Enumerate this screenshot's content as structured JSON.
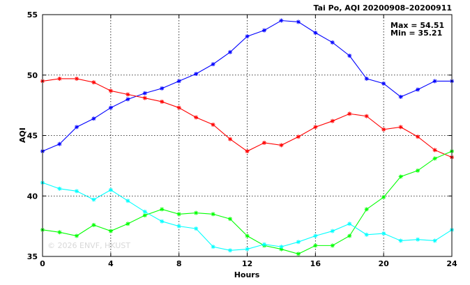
{
  "chart_data": {
    "type": "line",
    "title": "Tai Po, AQI 20200908–20200911",
    "xlabel": "Hours",
    "ylabel": "AQI",
    "xlim": [
      0,
      24
    ],
    "ylim": [
      35,
      55
    ],
    "xticks": [
      0,
      4,
      8,
      12,
      16,
      20,
      24
    ],
    "yticks": [
      35,
      40,
      45,
      50,
      55
    ],
    "grid": true,
    "annotations": {
      "max": "Max = 54.51",
      "min": "Min = 35.21"
    },
    "watermark": "© 2026  ENVF, HKUST",
    "x": [
      0,
      1,
      2,
      3,
      4,
      5,
      6,
      7,
      8,
      9,
      10,
      11,
      12,
      13,
      14,
      15,
      16,
      17,
      18,
      19,
      20,
      21,
      22,
      23,
      24
    ],
    "series": [
      {
        "color": "#0000ff",
        "values": [
          43.7,
          44.3,
          45.7,
          46.4,
          47.3,
          48.0,
          48.5,
          48.9,
          49.5,
          50.1,
          50.9,
          51.9,
          53.2,
          53.7,
          54.51,
          54.4,
          53.5,
          52.7,
          51.6,
          49.7,
          49.3,
          48.2,
          48.8,
          49.5,
          49.5
        ]
      },
      {
        "color": "#ff0000",
        "values": [
          49.5,
          49.7,
          49.7,
          49.4,
          48.7,
          48.4,
          48.1,
          47.8,
          47.3,
          46.5,
          45.9,
          44.7,
          43.7,
          44.4,
          44.2,
          44.9,
          45.7,
          46.2,
          46.8,
          46.6,
          45.5,
          45.7,
          44.9,
          43.8,
          43.2
        ]
      },
      {
        "color": "#00ff00",
        "values": [
          37.2,
          37.0,
          36.7,
          37.6,
          37.1,
          37.7,
          38.4,
          38.9,
          38.5,
          38.6,
          38.5,
          38.1,
          36.7,
          35.9,
          35.6,
          35.21,
          35.9,
          35.9,
          36.7,
          38.9,
          39.9,
          41.6,
          42.1,
          43.1,
          43.7
        ]
      },
      {
        "color": "#00ffff",
        "values": [
          41.1,
          40.6,
          40.4,
          39.7,
          40.5,
          39.6,
          38.7,
          37.9,
          37.5,
          37.3,
          35.8,
          35.5,
          35.6,
          36.0,
          35.8,
          36.2,
          36.7,
          37.1,
          37.7,
          36.8,
          36.9,
          36.3,
          36.4,
          36.3,
          37.2
        ]
      }
    ]
  }
}
